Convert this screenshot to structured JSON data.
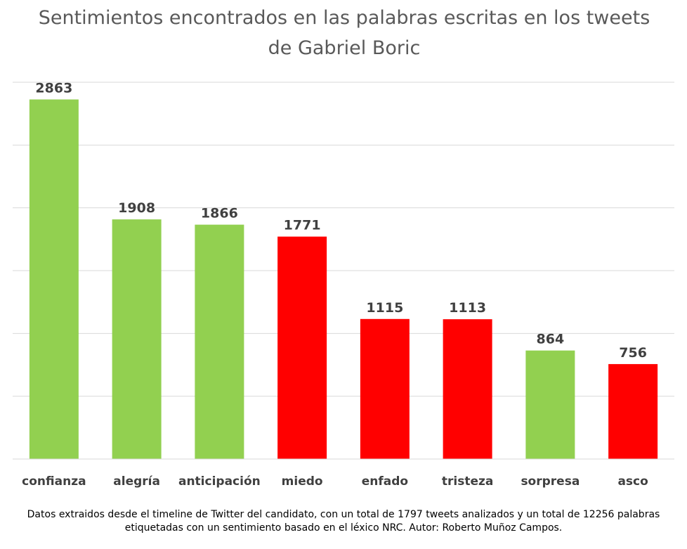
{
  "chart_data": {
    "type": "bar",
    "title": "Sentimientos encontrados en las palabras escritas en los tweets de Gabriel Boric",
    "categories": [
      "confianza",
      "alegría",
      "anticipación",
      "miedo",
      "enfado",
      "tristeza",
      "sorpresa",
      "asco"
    ],
    "values": [
      2863,
      1908,
      1866,
      1771,
      1115,
      1113,
      864,
      756
    ],
    "bar_colors": [
      "#92d050",
      "#92d050",
      "#92d050",
      "#ff0000",
      "#ff0000",
      "#ff0000",
      "#92d050",
      "#ff0000"
    ],
    "ylim": [
      0,
      3000
    ],
    "grid": true,
    "xlabel": "",
    "ylabel": "",
    "footnote": "Datos extraidos desde el timeline de Twitter del candidato, con un total de 1797 tweets analizados y un total de 12256 palabras etiquetadas con un sentimiento basado en el léxico NRC. Autor: Roberto Muñoz Campos."
  },
  "colors": {
    "positive": "#92d050",
    "negative": "#ff0000",
    "grid": "#d9d9d9",
    "label_text": "#404040",
    "title_text": "#595959"
  }
}
